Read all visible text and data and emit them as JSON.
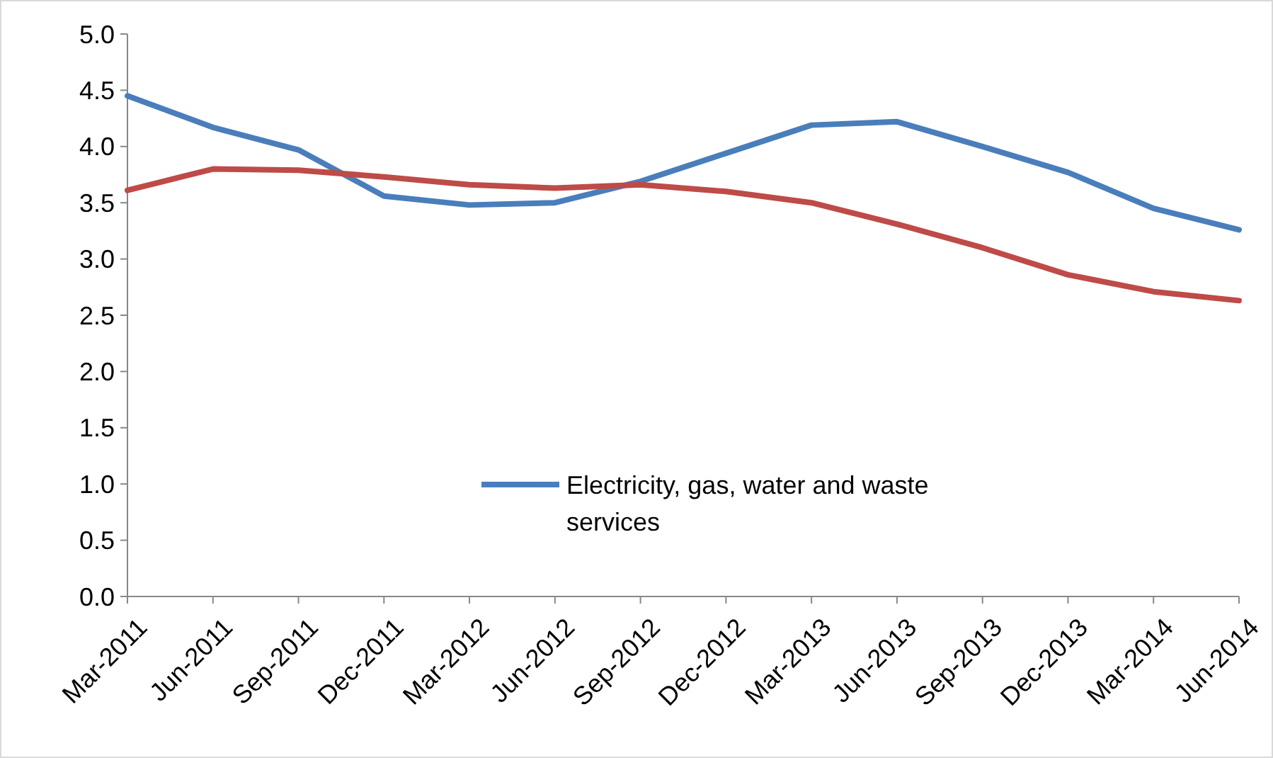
{
  "chart_data": {
    "type": "line",
    "categories": [
      "Mar-2011",
      "Jun-2011",
      "Sep-2011",
      "Dec-2011",
      "Mar-2012",
      "Jun-2012",
      "Sep-2012",
      "Dec-2012",
      "Mar-2013",
      "Jun-2013",
      "Sep-2013",
      "Dec-2013",
      "Mar-2014",
      "Jun-2014"
    ],
    "series": [
      {
        "name": "Electricity, gas, water and waste services",
        "color": "#4a7ebb",
        "values": [
          4.45,
          4.17,
          3.97,
          3.56,
          3.48,
          3.5,
          3.69,
          3.94,
          4.19,
          4.22,
          4.0,
          3.77,
          3.45,
          3.26
        ]
      },
      {
        "color": "#be4b48",
        "values": [
          3.61,
          3.8,
          3.79,
          3.73,
          3.66,
          3.63,
          3.66,
          3.6,
          3.5,
          3.31,
          3.1,
          2.86,
          2.71,
          2.63
        ]
      }
    ],
    "ylim": [
      0,
      5
    ],
    "yticks": [
      {
        "value": 0,
        "label": "0.0"
      },
      {
        "value": 0.5,
        "label": "0.5"
      },
      {
        "value": 1,
        "label": "1.0"
      },
      {
        "value": 1.5,
        "label": "1.5"
      },
      {
        "value": 2,
        "label": "2.0"
      },
      {
        "value": 2.5,
        "label": "2.5"
      },
      {
        "value": 3,
        "label": "3.0"
      },
      {
        "value": 3.5,
        "label": "3.5"
      },
      {
        "value": 4,
        "label": "4.0"
      },
      {
        "value": 4.5,
        "label": "4.5"
      },
      {
        "value": 5,
        "label": "5.0"
      }
    ],
    "legend": "bottom",
    "grid": false,
    "marker": "none",
    "line_style": "solid"
  }
}
